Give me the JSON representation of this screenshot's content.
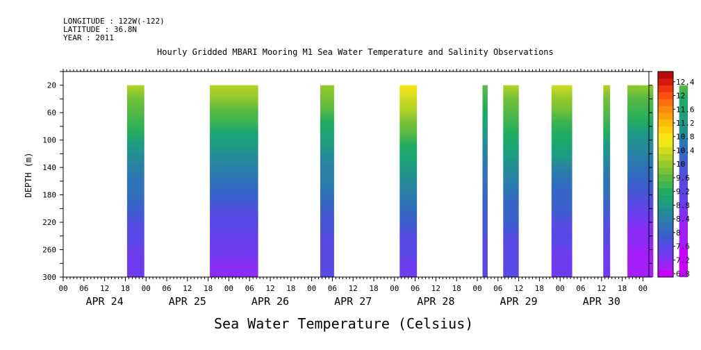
{
  "header": {
    "longitude": "LONGITUDE : 122W(-122)",
    "latitude": "LATITUDE : 36.8N",
    "year": "YEAR : 2011"
  },
  "chart_data": {
    "type": "heatmap",
    "title": "Hourly Gridded MBARI Mooring M1 Sea Water Temperature and Salinity Observations",
    "xlabel": "Sea Water Temperature (Celsius)",
    "ylabel": "DEPTH (m)",
    "x_hours_range": [
      0,
      168
    ],
    "x_hour_ticks": [
      "00",
      "06",
      "12",
      "18",
      "00",
      "06",
      "12",
      "18",
      "00",
      "06",
      "12",
      "18",
      "00",
      "06",
      "12",
      "18",
      "00",
      "06",
      "12",
      "18",
      "00",
      "06",
      "12",
      "18",
      "00",
      "06",
      "12",
      "18",
      "00"
    ],
    "date_labels": [
      "APR 24",
      "APR 25",
      "APR 26",
      "APR 27",
      "APR 28",
      "APR 29",
      "APR 30"
    ],
    "y_range": [
      300,
      0
    ],
    "y_ticks": [
      20,
      60,
      100,
      140,
      180,
      220,
      260,
      300
    ],
    "y_tick_labels": [
      "20",
      "60",
      "100",
      "140",
      "180",
      "220",
      "260",
      "300"
    ],
    "colorbar": {
      "levels": [
        6.8,
        7.0,
        7.2,
        7.4,
        7.6,
        7.8,
        8.0,
        8.2,
        8.4,
        8.6,
        8.8,
        9.0,
        9.2,
        9.4,
        9.6,
        9.8,
        10.0,
        10.2,
        10.4,
        10.6,
        10.8,
        11.0,
        11.2,
        11.4,
        11.6,
        11.8,
        12.0,
        12.2,
        12.4,
        12.6
      ],
      "labels": [
        "6.8",
        "7.2",
        "7.6",
        "8",
        "8.4",
        "8.8",
        "9.2",
        "9.6",
        "10",
        "10.4",
        "10.8",
        "11.2",
        "11.6",
        "12",
        "12.4"
      ],
      "colors": [
        "#c800ff",
        "#a41efa",
        "#8a2cf5",
        "#6e3cef",
        "#5a48e6",
        "#4656d8",
        "#3864c8",
        "#2e72b8",
        "#2a7ea8",
        "#238c96",
        "#1f9a84",
        "#1aa672",
        "#22ac60",
        "#3cb450",
        "#5aba40",
        "#78c234",
        "#96ca2a",
        "#b4d224",
        "#d2dc1e",
        "#ecea14",
        "#fae614",
        "#fcd20a",
        "#fcbc08",
        "#fca008",
        "#fc8a0a",
        "#fc6e0c",
        "#fc500e",
        "#f03210",
        "#d8180e",
        "#b80c0c"
      ]
    },
    "segments": [
      {
        "start_hour": 18.5,
        "end_hour": 23.5,
        "surface_temp": 10.2,
        "bottom_temp": 7.5
      },
      {
        "start_hour": 42.5,
        "end_hour": 56.5,
        "surface_temp": 10.3,
        "bottom_temp": 7.3
      },
      {
        "start_hour": 74.5,
        "end_hour": 78.5,
        "surface_temp": 10.1,
        "bottom_temp": 7.6
      },
      {
        "start_hour": 97.5,
        "end_hour": 102.5,
        "surface_temp": 10.9,
        "bottom_temp": 7.5
      },
      {
        "start_hour": 121.5,
        "end_hour": 123.0,
        "surface_temp": 9.6,
        "bottom_temp": 7.6
      },
      {
        "start_hour": 127.5,
        "end_hour": 132.0,
        "surface_temp": 10.2,
        "bottom_temp": 7.6
      },
      {
        "start_hour": 141.5,
        "end_hour": 147.5,
        "surface_temp": 10.4,
        "bottom_temp": 7.4
      },
      {
        "start_hour": 156.5,
        "end_hour": 158.5,
        "surface_temp": 10.2,
        "bottom_temp": 7.5
      },
      {
        "start_hour": 163.5,
        "end_hour": 171.0,
        "surface_temp": 10.1,
        "bottom_temp": 7.0
      },
      {
        "start_hour": 178.5,
        "end_hour": 181.0,
        "surface_temp": 9.6,
        "bottom_temp": 6.9
      }
    ]
  }
}
